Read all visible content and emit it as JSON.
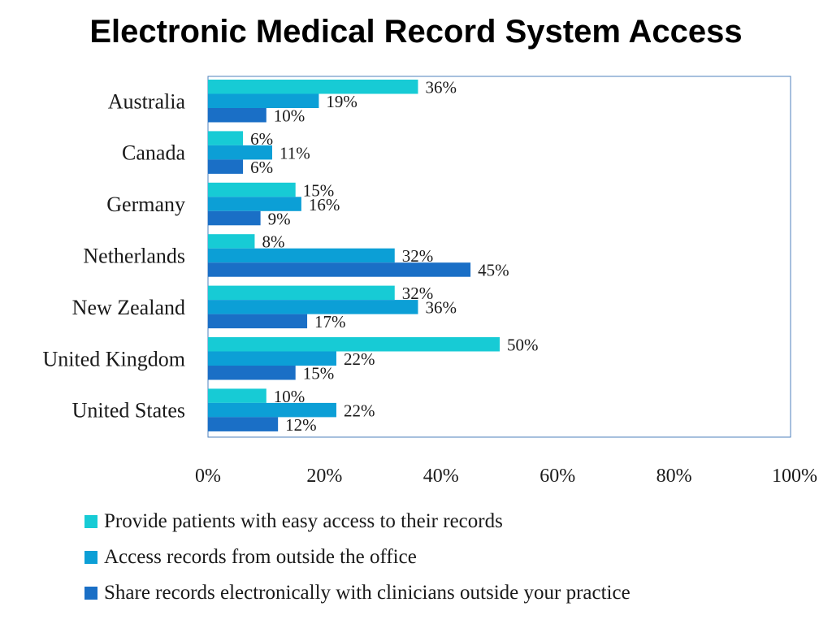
{
  "chart_data": {
    "type": "bar",
    "orientation": "horizontal",
    "title": "Electronic Medical Record System Access",
    "categories": [
      "Australia",
      "Canada",
      "Germany",
      "Netherlands",
      "New Zealand",
      "United Kingdom",
      "United States"
    ],
    "series": [
      {
        "name": "Provide patients with easy access to their records",
        "color": "#17CBD5",
        "values": [
          36,
          6,
          15,
          8,
          32,
          50,
          10
        ],
        "labels": [
          "36%",
          "6%",
          "15%",
          "8%",
          "32%",
          "50%",
          "10%"
        ]
      },
      {
        "name": "Access records from outside the office",
        "color": "#0C9FD6",
        "values": [
          19,
          11,
          16,
          32,
          36,
          22,
          22
        ],
        "labels": [
          "19%",
          "11%",
          "16%",
          "32%",
          "36%",
          "22%",
          "22%"
        ]
      },
      {
        "name": "Share records electronically with clinicians outside your practice",
        "color": "#1A6FC6",
        "values": [
          10,
          6,
          9,
          45,
          17,
          15,
          12
        ],
        "labels": [
          "10%",
          "6%",
          "9%",
          "45%",
          "17%",
          "15%",
          "12%"
        ]
      }
    ],
    "xlim": [
      0,
      100
    ],
    "x_ticks": [
      0,
      20,
      40,
      60,
      80,
      100
    ],
    "x_tick_labels": [
      "0%",
      "20%",
      "40%",
      "60%",
      "80%",
      "100%"
    ],
    "xlabel": "",
    "ylabel": "",
    "grid": false,
    "legend_position": "bottom",
    "plot_border_color": "#4F81BD"
  }
}
